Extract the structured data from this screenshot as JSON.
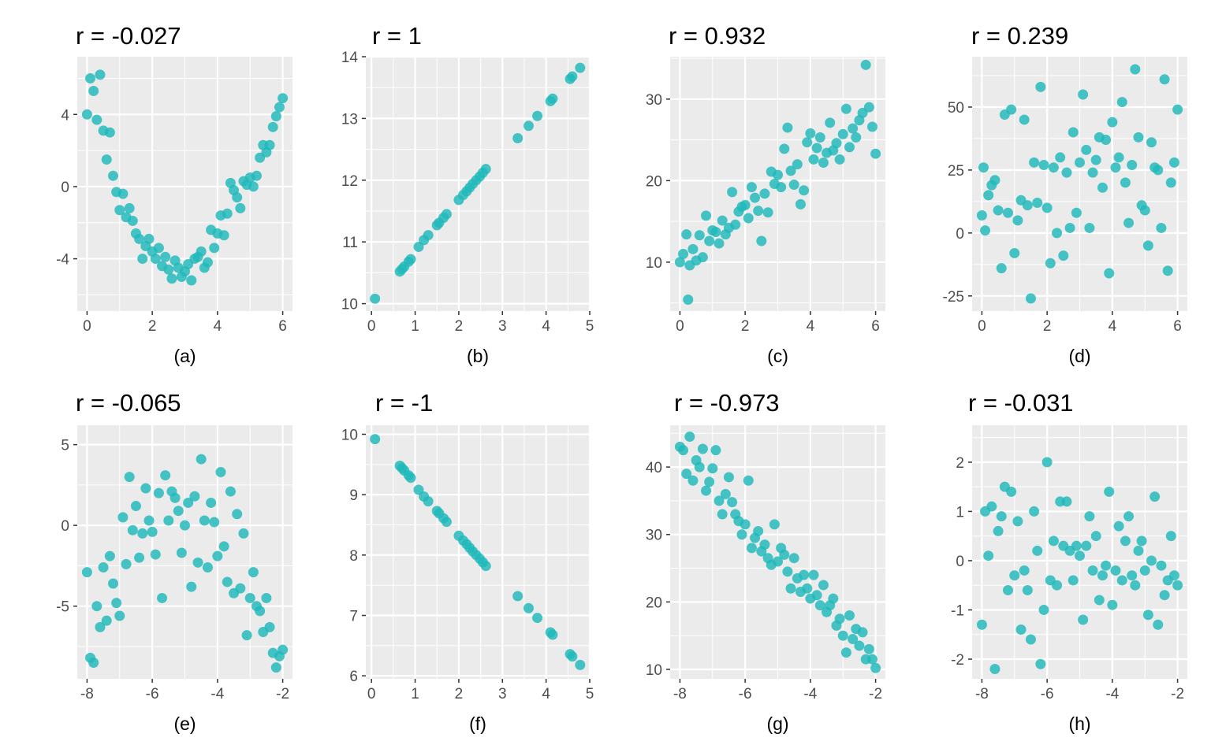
{
  "chart_data": [
    {
      "type": "scatter",
      "title": "r = -0.027",
      "xlabel": "(a)",
      "ylabel": "",
      "xlim": [
        -0.3,
        6.3
      ],
      "ylim": [
        -6.9,
        7.2
      ],
      "xticks": [
        0,
        2,
        4,
        6
      ],
      "yticks": [
        -4,
        0,
        4
      ],
      "grid": true,
      "x": [
        0.0,
        0.1,
        0.2,
        0.3,
        0.4,
        0.5,
        0.6,
        0.7,
        0.8,
        0.9,
        1.0,
        1.1,
        1.2,
        1.3,
        1.4,
        1.5,
        1.6,
        1.7,
        1.8,
        1.9,
        2.0,
        2.1,
        2.2,
        2.3,
        2.4,
        2.5,
        2.6,
        2.7,
        2.8,
        2.9,
        3.0,
        3.1,
        3.2,
        3.3,
        3.4,
        3.5,
        3.6,
        3.7,
        3.8,
        3.9,
        4.0,
        4.1,
        4.2,
        4.3,
        4.4,
        4.5,
        4.6,
        4.7,
        4.8,
        4.9,
        5.0,
        5.1,
        5.2,
        5.3,
        5.4,
        5.5,
        5.6,
        5.7,
        5.8,
        5.9,
        6.0
      ],
      "y": [
        4.0,
        6.0,
        5.3,
        3.7,
        6.2,
        3.1,
        1.5,
        3.0,
        0.6,
        -0.3,
        -1.3,
        -0.4,
        -1.7,
        -1.2,
        -1.9,
        -2.6,
        -2.9,
        -4.0,
        -3.3,
        -2.9,
        -3.6,
        -4.0,
        -3.4,
        -4.4,
        -3.9,
        -4.6,
        -5.1,
        -4.1,
        -4.5,
        -5.0,
        -4.7,
        -4.3,
        -5.2,
        -4.0,
        -3.9,
        -3.6,
        -4.5,
        -4.2,
        -2.4,
        -3.4,
        -2.6,
        -1.6,
        -2.7,
        -1.5,
        0.2,
        -0.2,
        -0.6,
        -1.2,
        0.3,
        0.1,
        0.5,
        0.0,
        0.6,
        1.6,
        2.3,
        1.9,
        2.3,
        3.3,
        3.9,
        4.4,
        4.9
      ]
    },
    {
      "type": "scatter",
      "title": "r = 1",
      "xlabel": "(b)",
      "ylabel": "",
      "xlim": [
        -0.13,
        5.0
      ],
      "ylim": [
        9.88,
        14.0
      ],
      "xticks": [
        0,
        1,
        2,
        3,
        4,
        5
      ],
      "yticks": [
        10,
        11,
        12,
        13,
        14
      ],
      "grid": true,
      "x": [
        0.08,
        0.65,
        0.7,
        0.75,
        0.85,
        0.9,
        1.08,
        1.2,
        1.3,
        1.5,
        1.55,
        1.65,
        1.72,
        2.0,
        2.1,
        2.18,
        2.25,
        2.32,
        2.4,
        2.48,
        2.55,
        2.62,
        3.35,
        3.6,
        3.8,
        4.1,
        4.15,
        4.55,
        4.6,
        4.78
      ],
      "y": [
        10.08,
        10.52,
        10.56,
        10.6,
        10.68,
        10.72,
        10.92,
        11.03,
        11.11,
        11.27,
        11.31,
        11.39,
        11.45,
        11.68,
        11.76,
        11.82,
        11.88,
        11.94,
        12.0,
        12.06,
        12.12,
        12.18,
        12.68,
        12.88,
        13.04,
        13.28,
        13.32,
        13.64,
        13.68,
        13.82
      ]
    },
    {
      "type": "scatter",
      "title": "r = 0.932",
      "xlabel": "(c)",
      "ylabel": "",
      "xlim": [
        -0.3,
        6.3
      ],
      "ylim": [
        4.0,
        35.2
      ],
      "xticks": [
        0,
        2,
        4,
        6
      ],
      "yticks": [
        10,
        20,
        30
      ],
      "grid": true,
      "x": [
        0.0,
        0.1,
        0.2,
        0.25,
        0.3,
        0.4,
        0.5,
        0.6,
        0.7,
        0.8,
        0.9,
        1.0,
        1.1,
        1.2,
        1.3,
        1.4,
        1.5,
        1.6,
        1.7,
        1.8,
        1.9,
        2.0,
        2.1,
        2.2,
        2.3,
        2.4,
        2.5,
        2.6,
        2.7,
        2.8,
        2.9,
        3.0,
        3.1,
        3.2,
        3.3,
        3.4,
        3.5,
        3.6,
        3.7,
        3.8,
        3.9,
        4.0,
        4.1,
        4.2,
        4.3,
        4.4,
        4.5,
        4.6,
        4.7,
        4.8,
        4.9,
        5.0,
        5.1,
        5.2,
        5.3,
        5.4,
        5.5,
        5.6,
        5.7,
        5.8,
        5.9,
        6.0
      ],
      "y": [
        10.0,
        11.0,
        13.4,
        5.4,
        9.6,
        11.6,
        10.2,
        13.3,
        10.6,
        15.7,
        12.6,
        13.9,
        13.7,
        12.3,
        15.1,
        13.4,
        14.2,
        18.6,
        14.6,
        16.2,
        16.8,
        17.0,
        15.4,
        19.2,
        17.9,
        16.3,
        12.6,
        18.4,
        16.1,
        21.1,
        19.6,
        20.7,
        19.2,
        23.9,
        26.5,
        21.2,
        19.5,
        22.0,
        17.1,
        18.8,
        24.7,
        25.8,
        22.6,
        24.0,
        25.3,
        22.2,
        23.4,
        27.1,
        23.7,
        24.6,
        22.6,
        25.7,
        28.8,
        24.1,
        26.4,
        25.3,
        27.4,
        28.3,
        34.2,
        29.0,
        26.6,
        23.3
      ]
    },
    {
      "type": "scatter",
      "title": "r = 0.239",
      "xlabel": "(d)",
      "ylabel": "",
      "xlim": [
        -0.3,
        6.3
      ],
      "ylim": [
        -31,
        70
      ],
      "xticks": [
        0,
        2,
        4,
        6
      ],
      "yticks": [
        -25,
        0,
        25,
        50
      ],
      "grid": true,
      "x": [
        0.0,
        0.05,
        0.1,
        0.2,
        0.3,
        0.4,
        0.5,
        0.6,
        0.7,
        0.8,
        0.9,
        1.0,
        1.1,
        1.2,
        1.3,
        1.4,
        1.5,
        1.6,
        1.7,
        1.8,
        1.9,
        2.0,
        2.1,
        2.2,
        2.3,
        2.4,
        2.5,
        2.6,
        2.7,
        2.8,
        2.9,
        3.0,
        3.1,
        3.2,
        3.3,
        3.4,
        3.5,
        3.6,
        3.7,
        3.8,
        3.9,
        4.0,
        4.1,
        4.2,
        4.3,
        4.4,
        4.5,
        4.6,
        4.7,
        4.8,
        4.9,
        5.0,
        5.1,
        5.2,
        5.3,
        5.4,
        5.5,
        5.6,
        5.7,
        5.8,
        5.9,
        6.0
      ],
      "y": [
        7,
        26,
        1,
        15,
        19,
        21,
        9,
        -14,
        47,
        8,
        49,
        -8,
        5,
        13,
        45,
        11,
        -26,
        28,
        12,
        58,
        27,
        10,
        -12,
        26,
        0,
        30,
        -9,
        24,
        2,
        40,
        8,
        28,
        55,
        33,
        2,
        24,
        29,
        38,
        18,
        37,
        -16,
        44,
        26,
        30,
        52,
        20,
        4,
        27,
        65,
        38,
        11,
        9,
        -5,
        36,
        26,
        25,
        2,
        61,
        -15,
        20,
        28,
        49
      ]
    },
    {
      "type": "scatter",
      "title": "r = -0.065",
      "xlabel": "(e)",
      "ylabel": "",
      "xlim": [
        -8.3,
        -1.7
      ],
      "ylim": [
        -9.5,
        6.2
      ],
      "xticks": [
        -8,
        -6,
        -4,
        -2
      ],
      "yticks": [
        -5,
        0,
        5
      ],
      "grid": true,
      "x": [
        -8.0,
        -7.9,
        -7.8,
        -7.7,
        -7.6,
        -7.5,
        -7.4,
        -7.3,
        -7.2,
        -7.1,
        -7.0,
        -6.9,
        -6.8,
        -6.7,
        -6.6,
        -6.5,
        -6.4,
        -6.3,
        -6.2,
        -6.1,
        -6.0,
        -5.9,
        -5.8,
        -5.7,
        -5.6,
        -5.5,
        -5.4,
        -5.3,
        -5.2,
        -5.1,
        -5.0,
        -4.9,
        -4.8,
        -4.7,
        -4.6,
        -4.5,
        -4.4,
        -4.3,
        -4.2,
        -4.1,
        -4.0,
        -3.9,
        -3.8,
        -3.7,
        -3.6,
        -3.5,
        -3.4,
        -3.3,
        -3.2,
        -3.1,
        -3.0,
        -2.9,
        -2.8,
        -2.7,
        -2.6,
        -2.5,
        -2.4,
        -2.3,
        -2.2,
        -2.1,
        -2.0
      ],
      "y": [
        -2.9,
        -8.2,
        -8.5,
        -5.0,
        -6.3,
        -2.6,
        -5.9,
        -1.9,
        -3.6,
        -4.8,
        -5.6,
        0.5,
        -2.4,
        3.0,
        -0.3,
        1.2,
        -2.0,
        -0.5,
        2.3,
        0.3,
        -0.4,
        -1.8,
        2.0,
        -4.5,
        3.1,
        0.3,
        2.1,
        1.7,
        0.9,
        -1.7,
        0.0,
        1.4,
        -3.8,
        1.8,
        -2.3,
        4.1,
        0.3,
        -2.6,
        1.4,
        0.2,
        -1.9,
        3.3,
        -1.3,
        -3.5,
        2.1,
        -4.2,
        0.7,
        -3.9,
        -0.5,
        -6.8,
        -4.5,
        -2.9,
        -5.0,
        -5.3,
        -6.6,
        -4.5,
        -6.3,
        -7.9,
        -8.8,
        -8.1,
        -7.7
      ]
    },
    {
      "type": "scatter",
      "title": "r = -1",
      "xlabel": "(f)",
      "ylabel": "",
      "xlim": [
        -0.13,
        5.0
      ],
      "ylim": [
        5.95,
        10.15
      ],
      "xticks": [
        0,
        1,
        2,
        3,
        4,
        5
      ],
      "yticks": [
        6,
        7,
        8,
        9,
        10
      ],
      "grid": true,
      "x": [
        0.08,
        0.65,
        0.7,
        0.75,
        0.85,
        0.9,
        1.08,
        1.2,
        1.3,
        1.5,
        1.55,
        1.65,
        1.72,
        2.0,
        2.1,
        2.18,
        2.25,
        2.32,
        2.4,
        2.48,
        2.55,
        2.62,
        3.35,
        3.6,
        3.8,
        4.1,
        4.15,
        4.55,
        4.6,
        4.78
      ],
      "y": [
        9.92,
        9.48,
        9.44,
        9.4,
        9.32,
        9.28,
        9.08,
        8.97,
        8.89,
        8.73,
        8.69,
        8.61,
        8.55,
        8.32,
        8.24,
        8.18,
        8.12,
        8.06,
        8.0,
        7.94,
        7.88,
        7.82,
        7.32,
        7.12,
        6.96,
        6.72,
        6.68,
        6.36,
        6.32,
        6.18
      ]
    },
    {
      "type": "scatter",
      "title": "r = -0.973",
      "xlabel": "(g)",
      "ylabel": "",
      "xlim": [
        -8.3,
        -1.7
      ],
      "ylim": [
        8.6,
        46.2
      ],
      "xticks": [
        -8,
        -6,
        -4,
        -2
      ],
      "yticks": [
        10,
        20,
        30,
        40
      ],
      "grid": true,
      "x": [
        -8.0,
        -7.9,
        -7.8,
        -7.7,
        -7.6,
        -7.5,
        -7.4,
        -7.3,
        -7.2,
        -7.1,
        -7.0,
        -6.9,
        -6.8,
        -6.7,
        -6.6,
        -6.5,
        -6.4,
        -6.3,
        -6.2,
        -6.1,
        -6.0,
        -5.9,
        -5.8,
        -5.7,
        -5.6,
        -5.5,
        -5.4,
        -5.3,
        -5.2,
        -5.1,
        -5.0,
        -4.9,
        -4.8,
        -4.7,
        -4.6,
        -4.5,
        -4.4,
        -4.3,
        -4.2,
        -4.1,
        -4.0,
        -3.9,
        -3.8,
        -3.7,
        -3.6,
        -3.5,
        -3.4,
        -3.3,
        -3.2,
        -3.1,
        -3.0,
        -2.9,
        -2.8,
        -2.7,
        -2.6,
        -2.5,
        -2.4,
        -2.3,
        -2.2,
        -2.1,
        -2.0
      ],
      "y": [
        43.0,
        42.5,
        39.0,
        44.5,
        38.0,
        41.0,
        40.0,
        42.7,
        36.5,
        37.8,
        39.8,
        42.5,
        35.0,
        33.0,
        36.0,
        38.5,
        34.8,
        33.0,
        32.0,
        30.0,
        31.5,
        38.0,
        28.0,
        29.5,
        30.5,
        27.5,
        28.5,
        26.5,
        25.5,
        31.5,
        26.0,
        28.0,
        27.0,
        24.5,
        22.0,
        26.5,
        23.5,
        21.5,
        24.0,
        22.0,
        20.5,
        24.0,
        21.0,
        19.5,
        22.5,
        18.5,
        19.5,
        20.5,
        16.5,
        17.5,
        15.0,
        12.5,
        18.0,
        14.5,
        16.0,
        13.5,
        15.5,
        11.5,
        13.0,
        11.5,
        10.2
      ]
    },
    {
      "type": "scatter",
      "title": "r = -0.031",
      "xlabel": "(h)",
      "ylabel": "",
      "xlim": [
        -8.3,
        -1.7
      ],
      "ylim": [
        -2.4,
        2.75
      ],
      "xticks": [
        -8,
        -6,
        -4,
        -2
      ],
      "yticks": [
        -2,
        -1,
        0,
        1,
        2
      ],
      "grid": true,
      "x": [
        -8.0,
        -7.9,
        -7.8,
        -7.7,
        -7.6,
        -7.5,
        -7.4,
        -7.3,
        -7.2,
        -7.1,
        -7.0,
        -6.9,
        -6.8,
        -6.7,
        -6.6,
        -6.5,
        -6.4,
        -6.3,
        -6.2,
        -6.1,
        -6.0,
        -5.9,
        -5.8,
        -5.7,
        -5.6,
        -5.5,
        -5.4,
        -5.3,
        -5.2,
        -5.1,
        -5.0,
        -4.9,
        -4.8,
        -4.7,
        -4.6,
        -4.5,
        -4.4,
        -4.3,
        -4.2,
        -4.1,
        -4.0,
        -3.9,
        -3.8,
        -3.7,
        -3.6,
        -3.5,
        -3.4,
        -3.3,
        -3.2,
        -3.1,
        -3.0,
        -2.9,
        -2.8,
        -2.7,
        -2.6,
        -2.5,
        -2.4,
        -2.3,
        -2.2,
        -2.1,
        -2.0
      ],
      "y": [
        -1.3,
        1.0,
        0.1,
        1.1,
        -2.2,
        0.6,
        0.9,
        1.5,
        -0.6,
        1.4,
        -0.3,
        0.8,
        -1.4,
        -0.2,
        -0.6,
        -1.6,
        1.0,
        0.2,
        -2.1,
        -1.0,
        2.0,
        -0.4,
        0.4,
        -0.5,
        1.2,
        0.3,
        1.2,
        0.2,
        -0.4,
        0.3,
        0.1,
        -1.2,
        0.3,
        0.9,
        -0.2,
        0.5,
        -0.8,
        -0.3,
        -0.1,
        1.4,
        -0.9,
        -0.2,
        0.7,
        -0.4,
        0.4,
        0.9,
        -0.3,
        -0.5,
        0.2,
        0.4,
        -0.2,
        -1.1,
        0.0,
        1.3,
        -1.3,
        -0.1,
        -0.7,
        -0.4,
        0.5,
        -0.3,
        -0.5
      ]
    }
  ],
  "colors": {
    "points": "#1FB8BA",
    "panel_bg": "#EBEBEB",
    "grid": "#FFFFFF",
    "tick_text": "#4D4D4D",
    "title_text": "#000000"
  }
}
